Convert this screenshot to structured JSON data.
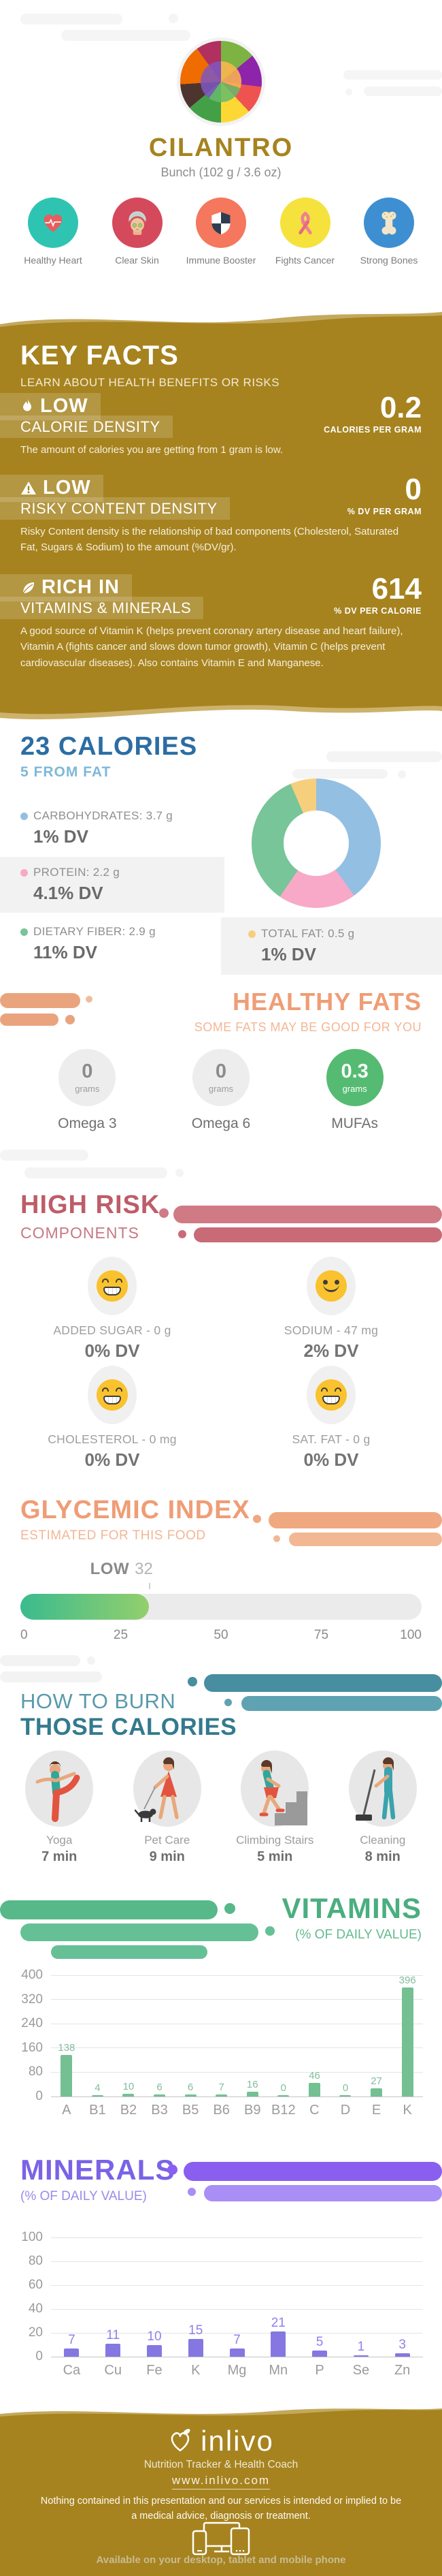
{
  "header": {
    "title": "CILANTRO",
    "subtitle": "Bunch (102 g / 3.6 oz)",
    "benefits": [
      {
        "label": "Healthy Heart",
        "icon": "heart-icon",
        "color": "#2fc4b2"
      },
      {
        "label": "Clear Skin",
        "icon": "face-icon",
        "color": "#d5495c"
      },
      {
        "label": "Immune Booster",
        "icon": "shield-icon",
        "color": "#f4775e"
      },
      {
        "label": "Fights Cancer",
        "icon": "ribbon-icon",
        "color": "#f5e23d"
      },
      {
        "label": "Strong Bones",
        "icon": "bone-icon",
        "color": "#3d8fd1"
      }
    ]
  },
  "key_facts": {
    "title": "KEY FACTS",
    "subtitle": "LEARN ABOUT HEALTH BENEFITS OR RISKS",
    "facts": [
      {
        "badge": "LOW",
        "category": "CALORIE DENSITY",
        "value": "0.2",
        "unit": "CALORIES PER GRAM",
        "description": "The amount of calories you are getting from 1 gram is low.",
        "icon": "flame-icon"
      },
      {
        "badge": "LOW",
        "category": "RISKY CONTENT DENSITY",
        "value": "0",
        "unit": "% DV PER GRAM",
        "description": "Risky Content density is the relationship of bad components (Cholesterol, Saturated Fat, Sugars & Sodium) to the amount (%DV/gr).",
        "icon": "warning-icon"
      },
      {
        "badge": "RICH IN",
        "category": "VITAMINS & MINERALS",
        "value": "614",
        "unit": "% DV PER CALORIE",
        "description": "A good source of Vitamin K (helps prevent coronary artery disease and heart failure), Vitamin A (fights cancer and slows down tumor growth), Vitamin C (helps prevent cardiovascular diseases). Also contains Vitamin E and Manganese.",
        "icon": "leaf-icon"
      }
    ]
  },
  "calories": {
    "title": "23 CALORIES",
    "subtitle": "5 FROM FAT",
    "macros": [
      {
        "label": "CARBOHYDRATES: 3.7 g",
        "dv": "1% DV",
        "color": "#93bfe3",
        "banded": false
      },
      {
        "label": "PROTEIN: 2.2 g",
        "dv": "4.1% DV",
        "color": "#f8a9c7",
        "banded": true
      },
      {
        "label": "DIETARY FIBER: 2.9 g",
        "dv": "11% DV",
        "color": "#77c598",
        "banded": false
      },
      {
        "label": "TOTAL FAT: 0.5 g",
        "dv": "1% DV",
        "color": "#f6cf7d",
        "banded": true
      }
    ]
  },
  "healthy_fats": {
    "title": "HEALTHY FATS",
    "subtitle": "SOME FATS MAY BE GOOD FOR YOU",
    "items": [
      {
        "value": "0",
        "unit": "grams",
        "label": "Omega 3",
        "highlight": false
      },
      {
        "value": "0",
        "unit": "grams",
        "label": "Omega 6",
        "highlight": false
      },
      {
        "value": "0.3",
        "unit": "grams",
        "label": "MUFAs",
        "highlight": true
      }
    ]
  },
  "high_risk": {
    "title": "HIGH RISK",
    "subtitle": "COMPONENTS",
    "items": [
      {
        "label": "ADDED SUGAR - 0 g",
        "dv": "0% DV",
        "mood": "grin"
      },
      {
        "label": "SODIUM - 47 mg",
        "dv": "2% DV",
        "mood": "smile"
      },
      {
        "label": "CHOLESTEROL - 0 mg",
        "dv": "0% DV",
        "mood": "grin"
      },
      {
        "label": "SAT. FAT - 0 g",
        "dv": "0% DV",
        "mood": "grin"
      }
    ]
  },
  "glycemic": {
    "title": "GLYCEMIC INDEX",
    "subtitle": "ESTIMATED FOR THIS FOOD",
    "category": "LOW",
    "value": "32"
  },
  "burn": {
    "title_line1": "HOW TO BURN",
    "title_line2": "THOSE CALORIES",
    "activities": [
      {
        "label": "Yoga",
        "time": "7 min",
        "icon": "yoga-icon"
      },
      {
        "label": "Pet Care",
        "time": "9 min",
        "icon": "dog-walking-icon"
      },
      {
        "label": "Climbing Stairs",
        "time": "5 min",
        "icon": "stairs-icon"
      },
      {
        "label": "Cleaning",
        "time": "8 min",
        "icon": "broom-icon"
      }
    ]
  },
  "vitamins": {
    "title": "VITAMINS",
    "subtitle": "(% OF DAILY VALUE)"
  },
  "minerals": {
    "title": "MINERALS",
    "subtitle": "(% OF DAILY VALUE)"
  },
  "footer": {
    "brand": "inlivo",
    "tagline": "Nutrition Tracker & Health Coach",
    "url": "www.inlivo.com",
    "disclaimer": "Nothing contained in this presentation and our services is intended or implied to be a medical advice, diagnosis or treatment.",
    "availability": "Available on your desktop, tablet and mobile phone"
  },
  "colors": {
    "gold": "#a6831f",
    "beige_wave": "#c4a85c",
    "calories_title": "#2c6da3",
    "salmon": "#ef9d76",
    "rose": "#bd5d68",
    "teal": "#337a8d",
    "vitamins_green": "#4bae80",
    "minerals_purple": "#7a63e6"
  },
  "chart_data": [
    {
      "type": "pie",
      "title": "Calorie source breakdown",
      "labels": [
        "Carbohydrates",
        "Protein",
        "Dietary Fiber",
        "Total Fat"
      ],
      "values_percent": [
        40,
        19.5,
        34,
        6.5
      ],
      "colors": [
        "#93bfe3",
        "#f8a9c7",
        "#77c598",
        "#f6cf7d"
      ]
    },
    {
      "type": "bar",
      "title": "VITAMINS",
      "ylabel": "% of Daily Value",
      "categories": [
        "A",
        "B1",
        "B2",
        "B3",
        "B5",
        "B6",
        "B9",
        "B12",
        "C",
        "D",
        "E",
        "K"
      ],
      "values": [
        138,
        4,
        10,
        6,
        6,
        7,
        16,
        0,
        46,
        0,
        27,
        396
      ],
      "ylim": [
        0,
        400
      ],
      "yticks": [
        0,
        80,
        160,
        240,
        320,
        400
      ],
      "bar_color": "#74c092",
      "label_color": "#83bd9e",
      "grid": true,
      "legend": "none"
    },
    {
      "type": "bar",
      "title": "MINERALS",
      "ylabel": "% of Daily Value",
      "categories": [
        "Ca",
        "Cu",
        "Fe",
        "K",
        "Mg",
        "Mn",
        "P",
        "Se",
        "Zn"
      ],
      "values": [
        7,
        11,
        10,
        15,
        7,
        21,
        5,
        1,
        3
      ],
      "ylim": [
        0,
        100
      ],
      "yticks": [
        0,
        20,
        40,
        60,
        80,
        100
      ],
      "bar_color": "#8577e2",
      "label_color": "#8f81ea",
      "grid": true,
      "legend": "none"
    },
    {
      "type": "gauge",
      "title": "GLYCEMIC INDEX",
      "value": 32,
      "category": "LOW",
      "range": [
        0,
        100
      ],
      "ticks": [
        0,
        25,
        50,
        75,
        100
      ],
      "fill_colors": [
        "#3bbb8e",
        "#93cf6d"
      ]
    }
  ]
}
